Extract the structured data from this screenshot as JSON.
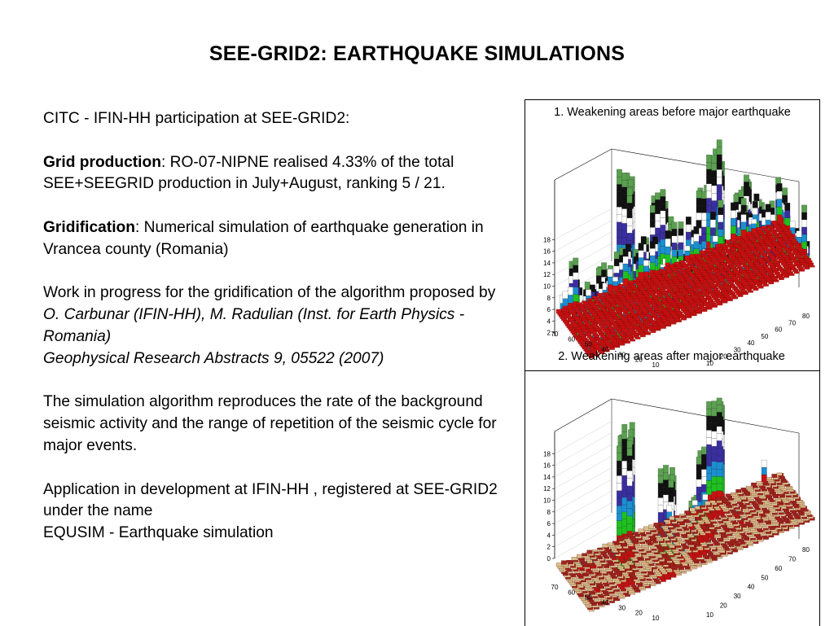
{
  "slide": {
    "title": "SEE-GRID2: EARTHQUAKE SIMULATIONS"
  },
  "body": {
    "intro": "CITC - IFIN-HH participation at SEE-GRID2:",
    "grid_production": {
      "label": "Grid production",
      "text": ": RO-07-NIPNE realised 4.33% of the total SEE+SEEGRID production in July+August, ranking 5 / 21."
    },
    "gridification": {
      "label": "Gridification",
      "text": ": Numerical simulation of earthquake generation in Vrancea county (Romania)"
    },
    "work": {
      "text": "Work in progress for the gridification of the algorithm proposed by ",
      "authors": "O. Carbunar (IFIN-HH), M. Radulian (Inst. for Earth Physics - Romania)",
      "reference": "Geophysical Research Abstracts 9, 05522 (2007)"
    },
    "simulation": "The simulation algorithm reproduces the rate of  the background seismic activity and the range of repetition of the seismic cycle for major events.",
    "application": {
      "line1": "Application in development at IFIN-HH , registered at SEE-GRID2 under the name",
      "line2": "EQUSIM - Earthquake simulation"
    }
  },
  "figures": [
    {
      "caption": "1. Weakening areas before major earthquake",
      "z_ticks": [
        "2",
        "4",
        "6",
        "8",
        "10",
        "12",
        "14",
        "16",
        "18"
      ],
      "y_ticks": [
        "10",
        "20",
        "30",
        "40",
        "50",
        "60",
        "70"
      ],
      "x_ticks": [
        "10",
        "20",
        "30",
        "40",
        "50",
        "60",
        "70",
        "80"
      ]
    },
    {
      "caption": "2. Weakening areas after major earthquake",
      "z_ticks": [
        "0",
        "2",
        "4",
        "6",
        "8",
        "10",
        "12",
        "14",
        "16",
        "18"
      ],
      "y_ticks": [
        "10",
        "20",
        "30",
        "40",
        "50",
        "60",
        "70"
      ],
      "x_ticks": [
        "10",
        "20",
        "30",
        "40",
        "50",
        "60",
        "70",
        "80"
      ]
    }
  ],
  "colors": {
    "floor": "#cc1111",
    "band_low": "#20c020",
    "band_mid": "#1b8fd0",
    "band_high": "#3a2fa0",
    "band_top": "#5aa050"
  }
}
